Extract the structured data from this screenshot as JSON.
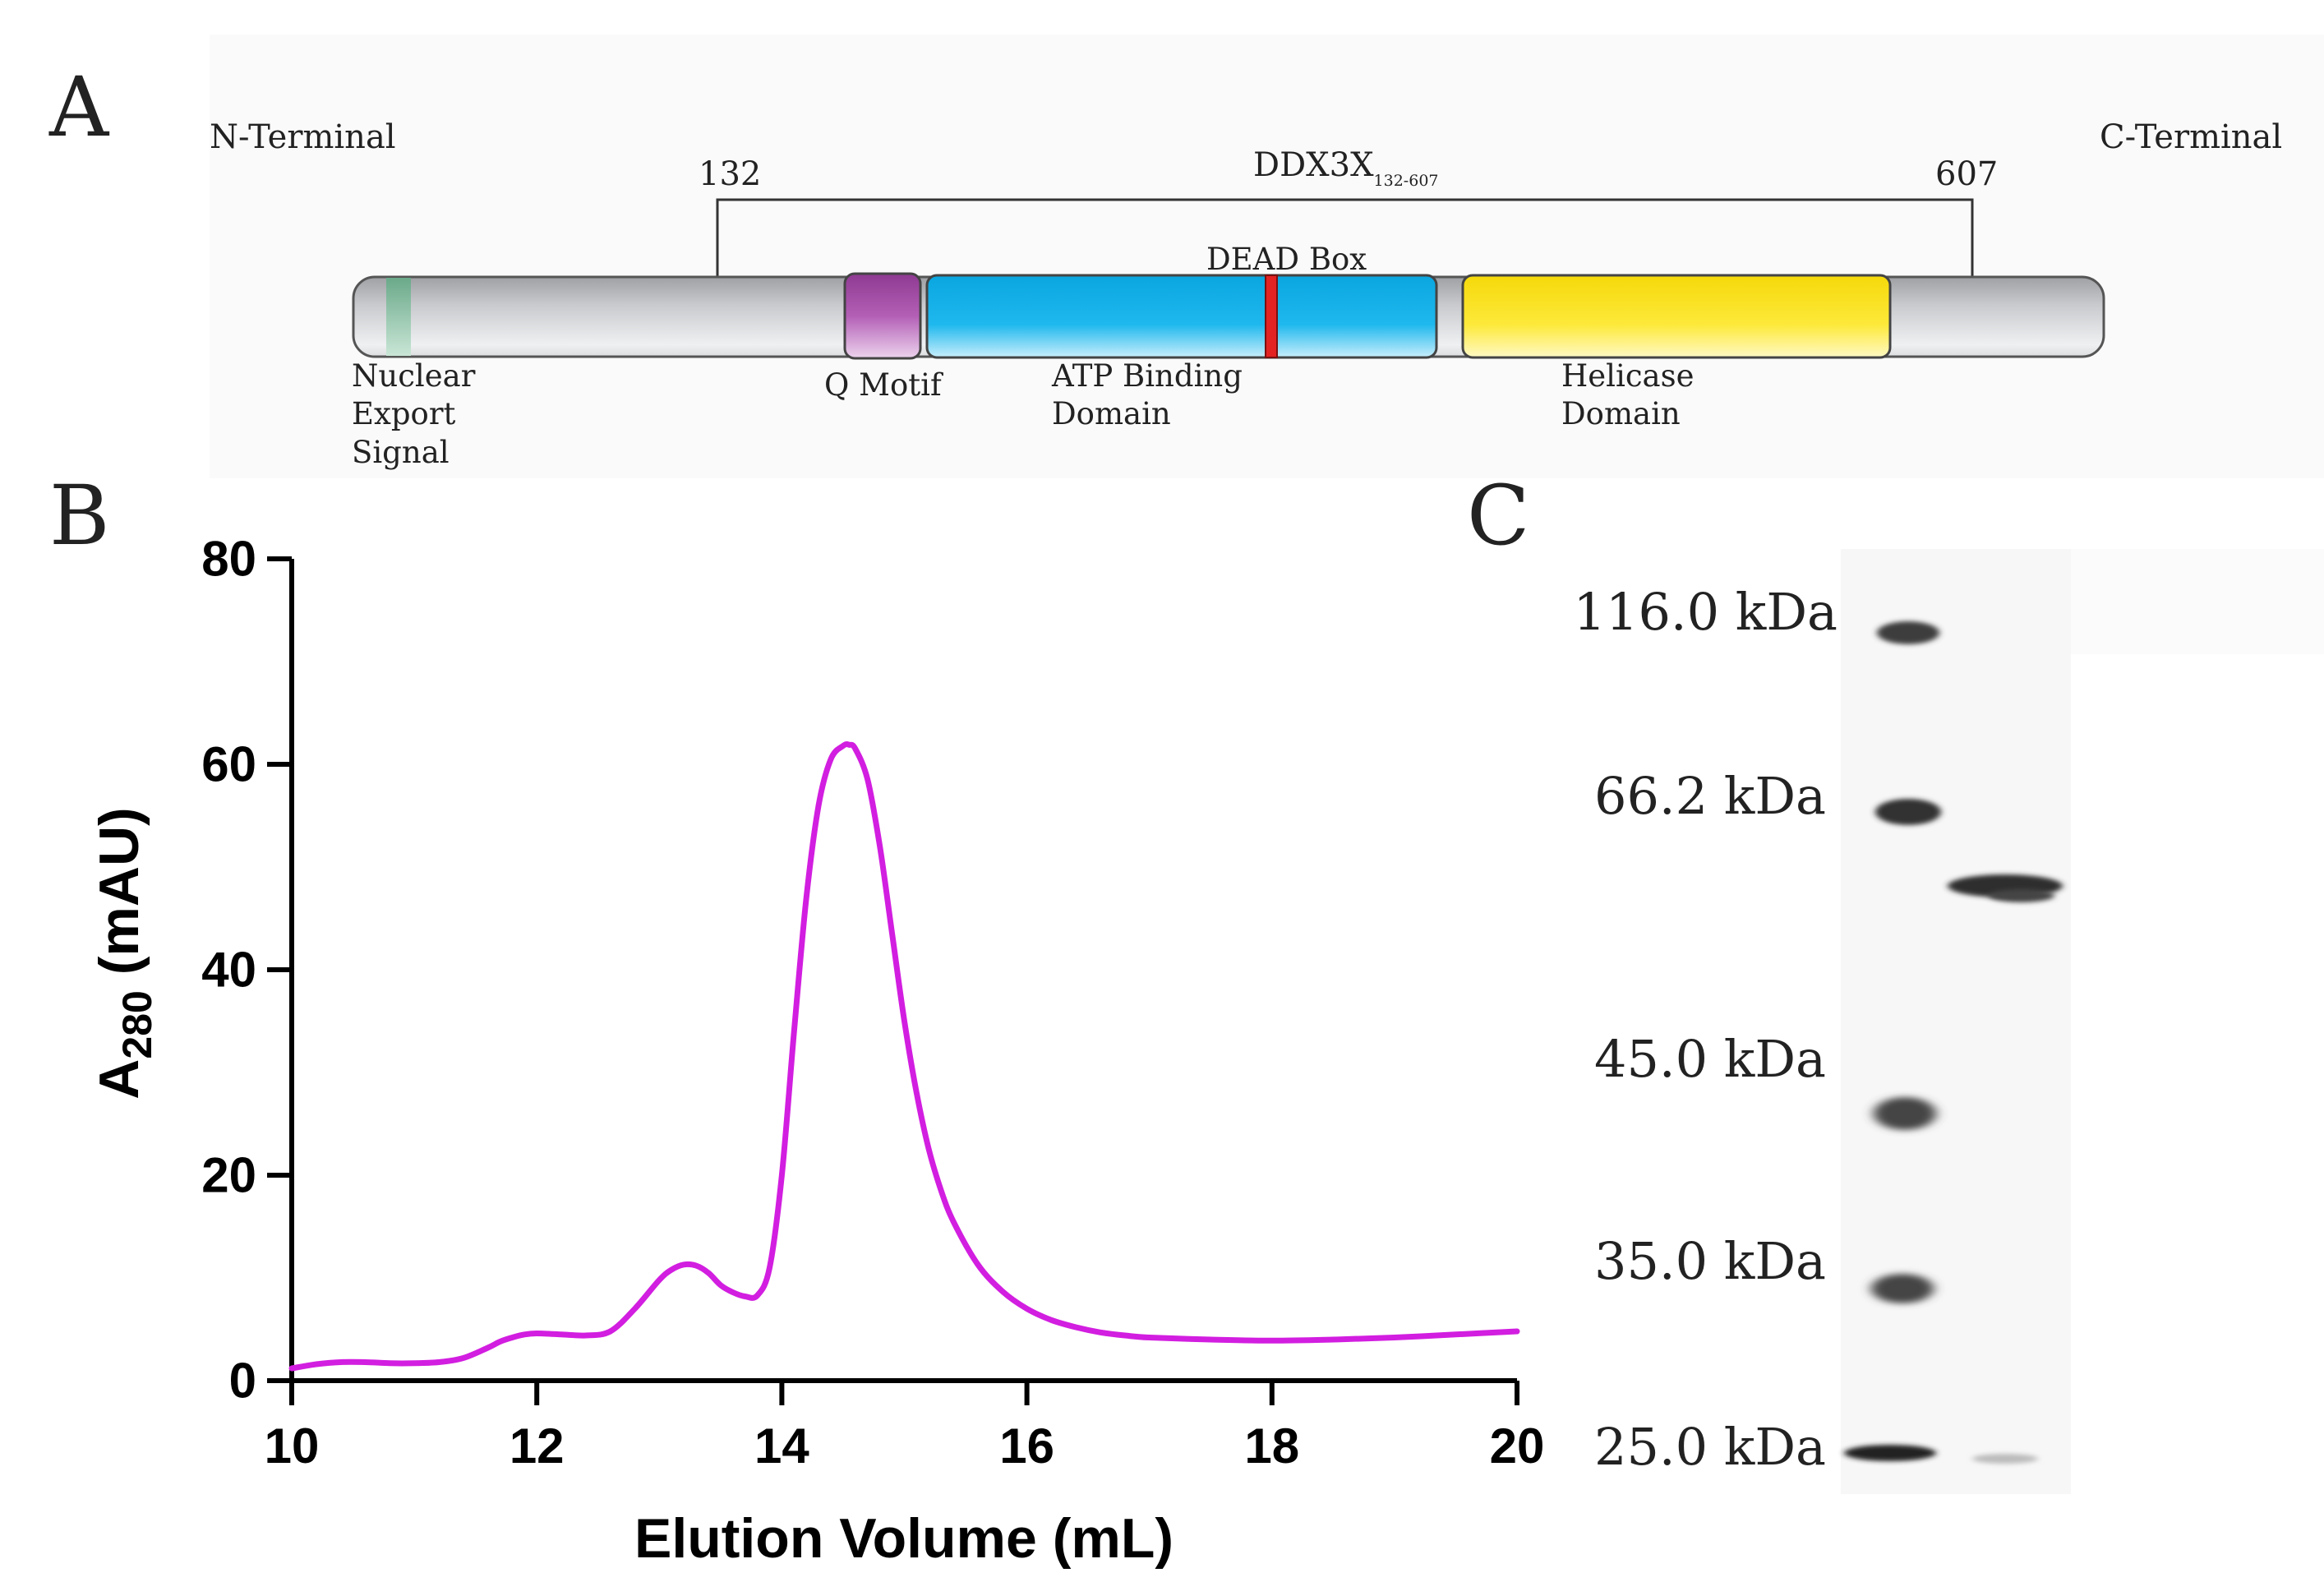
{
  "panels": {
    "a": "A",
    "b": "B",
    "c": "C"
  },
  "domain_map": {
    "n_terminal": "N-Terminal",
    "c_terminal": "C-Terminal",
    "start_residue": "132",
    "end_residue": "607",
    "construct_label": "DDX3X",
    "construct_subscript": "132-607",
    "dead_box": "DEAD Box",
    "nes_label": [
      "Nuclear",
      "Export",
      "Signal"
    ],
    "q_motif_label": "Q Motif",
    "atp_label": [
      "ATP Binding",
      "Domain"
    ],
    "helicase_label": [
      "Helicase",
      "Domain"
    ],
    "colors": {
      "backbone": "#c8c9cc",
      "nes": "#8fc4a8",
      "q_motif": "#a44fa6",
      "atp": "#12b3ea",
      "dead_box": "#e32222",
      "helicase": "#fbe520"
    }
  },
  "chart_data": {
    "type": "line",
    "title": "",
    "xlabel": "Elution Volume (mL)",
    "ylabel_main": "A",
    "ylabel_sub": "280",
    "ylabel_unit": " (mAU)",
    "xlim": [
      10,
      20
    ],
    "ylim": [
      0,
      80
    ],
    "x_ticks": [
      "10",
      "12",
      "14",
      "16",
      "18",
      "20"
    ],
    "y_ticks": [
      "0",
      "20",
      "40",
      "60",
      "80"
    ],
    "grid": false,
    "line_color": "#d21ee0",
    "series": [
      {
        "name": "DDX3X 132-607",
        "x": [
          10.0,
          10.2,
          10.4,
          10.6,
          10.8,
          11.0,
          11.2,
          11.4,
          11.6,
          11.7,
          11.8,
          11.9,
          12.0,
          12.2,
          12.4,
          12.6,
          12.8,
          13.0,
          13.1,
          13.2,
          13.3,
          13.4,
          13.5,
          13.6,
          13.7,
          13.8,
          13.9,
          14.0,
          14.1,
          14.2,
          14.3,
          14.4,
          14.5,
          14.55,
          14.6,
          14.7,
          14.8,
          14.9,
          15.0,
          15.1,
          15.2,
          15.3,
          15.4,
          15.6,
          15.8,
          16.0,
          16.2,
          16.4,
          16.6,
          16.8,
          17.0,
          17.5,
          18.0,
          18.5,
          19.0,
          19.5,
          20.0
        ],
        "y": [
          1.2,
          1.6,
          1.8,
          1.8,
          1.7,
          1.7,
          1.8,
          2.2,
          3.2,
          3.8,
          4.2,
          4.5,
          4.6,
          4.5,
          4.4,
          4.8,
          7.0,
          9.8,
          10.8,
          11.3,
          11.2,
          10.5,
          9.3,
          8.6,
          8.2,
          8.3,
          11.0,
          20.0,
          34.0,
          47.0,
          56.0,
          60.5,
          61.8,
          61.9,
          61.5,
          58.5,
          52.0,
          43.5,
          35.0,
          28.0,
          22.5,
          18.5,
          15.5,
          11.3,
          8.7,
          7.0,
          5.9,
          5.2,
          4.7,
          4.4,
          4.2,
          4.0,
          3.9,
          4.0,
          4.2,
          4.5,
          4.8
        ]
      }
    ]
  },
  "gel": {
    "markers": [
      "116.0 kDa",
      "66.2 kDa",
      "45.0 kDa",
      "35.0 kDa",
      "25.0 kDa"
    ]
  }
}
